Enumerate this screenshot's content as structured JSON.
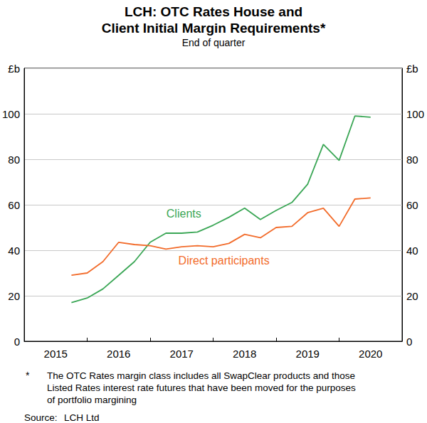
{
  "chart_data": {
    "type": "line",
    "title": "LCH: OTC Rates House and\nClient Initial Margin Requirements*",
    "subtitle": "End of quarter",
    "categories": [
      null,
      null,
      "2015",
      null,
      null,
      null,
      "2016",
      null,
      null,
      null,
      "2017",
      null,
      null,
      null,
      "2018",
      null,
      null,
      null,
      "2019",
      null,
      null,
      null,
      "2020",
      null,
      null
    ],
    "series": [
      {
        "name": "Clients",
        "color": "#3aa655",
        "values": [
          null,
          null,
          null,
          17,
          19,
          23,
          29,
          35,
          43.5,
          47.5,
          47.5,
          48,
          51,
          54.5,
          58.5,
          53.5,
          57.5,
          61,
          69,
          86.5,
          79.5,
          99,
          98.5,
          null,
          null
        ]
      },
      {
        "name": "Direct participants",
        "color": "#f26b2a",
        "values": [
          null,
          null,
          null,
          29,
          30,
          35,
          43.5,
          42.5,
          42,
          40.5,
          41.5,
          42,
          41.5,
          43,
          47,
          45.5,
          50,
          50.5,
          56.5,
          58.5,
          50.5,
          62.5,
          63,
          null,
          null
        ]
      }
    ],
    "ylim": [
      0,
      120
    ],
    "yticks": [
      0,
      20,
      40,
      60,
      80,
      100,
      {
        "value": 120,
        "label": "£b"
      }
    ],
    "grid": true,
    "footnote": {
      "marker": "*",
      "lines": [
        "The OTC Rates margin class includes all SwapClear products and those",
        "Listed Rates interest rate futures that have been moved for the purposes",
        "of portfolio margining"
      ]
    },
    "source": {
      "label": "Source:",
      "text": "LCH Ltd"
    }
  }
}
